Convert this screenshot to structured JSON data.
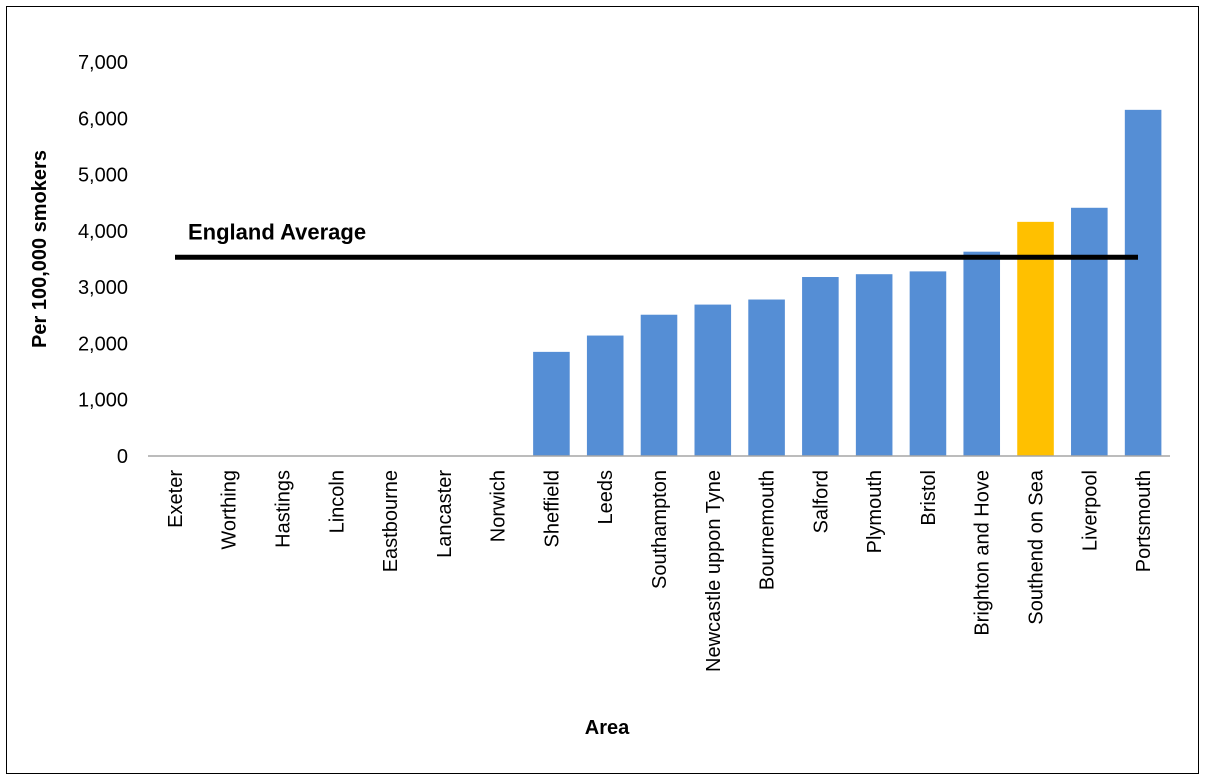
{
  "chart_data": {
    "type": "bar",
    "xlabel": "Area",
    "ylabel": "Per 100,000 smokers",
    "ylim": [
      0,
      7000
    ],
    "yticks": [
      0,
      1000,
      2000,
      3000,
      4000,
      5000,
      6000,
      7000
    ],
    "ytick_labels": [
      "0",
      "1,000",
      "2,000",
      "3,000",
      "4,000",
      "5,000",
      "6,000",
      "7,000"
    ],
    "categories": [
      "Exeter",
      "Worthing",
      "Hastings",
      "Lincoln",
      "Eastbourne",
      "Lancaster",
      "Norwich",
      "Sheffield",
      "Leeds",
      "Southampton",
      "Newcastle uppon Tyne",
      "Bournemouth",
      "Salford",
      "Plymouth",
      "Bristol",
      "Brighton and Hove",
      "Southend on Sea",
      "Liverpool",
      "Portsmouth"
    ],
    "values": [
      0,
      0,
      0,
      0,
      0,
      0,
      0,
      1850,
      2140,
      2510,
      2690,
      2780,
      3180,
      3230,
      3280,
      3630,
      4160,
      4410,
      6150
    ],
    "highlight_category": "Southend on Sea",
    "colors": {
      "bar": "#558ED5",
      "highlight": "#FFC000",
      "reference_line": "#000000"
    },
    "reference_line": {
      "label": "England Average",
      "value": 3530
    },
    "grid": false,
    "legend": "none"
  }
}
